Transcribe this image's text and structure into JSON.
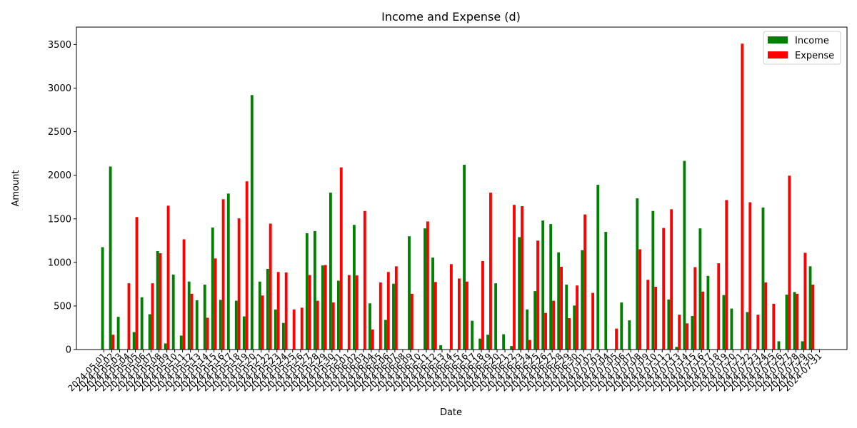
{
  "chart_data": {
    "type": "bar",
    "title": "Income and Expense (d)",
    "xlabel": "Date",
    "ylabel": "Amount",
    "ylim": [
      0,
      3700
    ],
    "yticks": [
      0,
      500,
      1000,
      1500,
      2000,
      2500,
      3000,
      3500
    ],
    "legend_position": "top-right",
    "categories": [
      "2024-05-01",
      "2024-05-02",
      "2024-05-03",
      "2024-05-04",
      "2024-05-05",
      "2024-05-06",
      "2024-05-07",
      "2024-05-08",
      "2024-05-09",
      "2024-05-10",
      "2024-05-11",
      "2024-05-12",
      "2024-05-13",
      "2024-05-14",
      "2024-05-15",
      "2024-05-16",
      "2024-05-17",
      "2024-05-18",
      "2024-05-19",
      "2024-05-20",
      "2024-05-21",
      "2024-05-22",
      "2024-05-23",
      "2024-05-24",
      "2024-05-25",
      "2024-05-26",
      "2024-05-27",
      "2024-05-28",
      "2024-05-29",
      "2024-05-30",
      "2024-05-31",
      "2024-06-01",
      "2024-06-02",
      "2024-06-03",
      "2024-06-04",
      "2024-06-05",
      "2024-06-06",
      "2024-06-07",
      "2024-06-08",
      "2024-06-09",
      "2024-06-10",
      "2024-06-11",
      "2024-06-12",
      "2024-06-13",
      "2024-06-14",
      "2024-06-15",
      "2024-06-16",
      "2024-06-17",
      "2024-06-18",
      "2024-06-19",
      "2024-06-20",
      "2024-06-21",
      "2024-06-22",
      "2024-06-23",
      "2024-06-24",
      "2024-06-25",
      "2024-06-26",
      "2024-06-27",
      "2024-06-28",
      "2024-06-29",
      "2024-06-30",
      "2024-07-01",
      "2024-07-02",
      "2024-07-03",
      "2024-07-04",
      "2024-07-05",
      "2024-07-06",
      "2024-07-07",
      "2024-07-08",
      "2024-07-09",
      "2024-07-10",
      "2024-07-11",
      "2024-07-12",
      "2024-07-13",
      "2024-07-14",
      "2024-07-15",
      "2024-07-16",
      "2024-07-17",
      "2024-07-18",
      "2024-07-19",
      "2024-07-20",
      "2024-07-21",
      "2024-07-22",
      "2024-07-23",
      "2024-07-24",
      "2024-07-25",
      "2024-07-26",
      "2024-07-27",
      "2024-07-28",
      "2024-07-29",
      "2024-07-30",
      "2024-07-31"
    ],
    "series": [
      {
        "name": "Income",
        "color": "#008000",
        "values": [
          1175,
          2100,
          375,
          0,
          200,
          600,
          405,
          1130,
          70,
          860,
          160,
          780,
          565,
          745,
          1400,
          570,
          1790,
          560,
          380,
          2920,
          780,
          925,
          460,
          305,
          0,
          0,
          1335,
          1360,
          965,
          1800,
          790,
          0,
          1430,
          0,
          530,
          0,
          340,
          755,
          0,
          1300,
          0,
          1390,
          1055,
          50,
          0,
          0,
          2120,
          330,
          125,
          170,
          760,
          175,
          40,
          1290,
          460,
          670,
          1480,
          1440,
          1115,
          745,
          505,
          1140,
          0,
          1890,
          1350,
          0,
          540,
          335,
          1735,
          0,
          1590,
          0,
          575,
          30,
          2165,
          385,
          1390,
          845,
          0,
          625,
          470,
          0,
          430,
          0,
          1630,
          0,
          95,
          630,
          660,
          95,
          955,
          0
        ]
      },
      {
        "name": "Expense",
        "color": "#ff0000",
        "values": [
          0,
          170,
          0,
          760,
          1520,
          0,
          760,
          1105,
          1650,
          0,
          1265,
          640,
          0,
          365,
          1045,
          1725,
          0,
          1505,
          1930,
          0,
          620,
          1445,
          890,
          885,
          460,
          480,
          855,
          560,
          970,
          540,
          2090,
          855,
          850,
          1590,
          230,
          770,
          890,
          955,
          0,
          640,
          0,
          1470,
          775,
          0,
          980,
          815,
          780,
          0,
          1015,
          1800,
          0,
          0,
          1660,
          1645,
          110,
          1250,
          420,
          560,
          950,
          360,
          735,
          1550,
          650,
          0,
          0,
          240,
          0,
          0,
          1150,
          800,
          720,
          1395,
          1610,
          400,
          300,
          945,
          665,
          0,
          990,
          1715,
          0,
          3510,
          1690,
          400,
          770,
          525,
          0,
          1995,
          640,
          1110,
          745,
          0
        ]
      }
    ]
  }
}
